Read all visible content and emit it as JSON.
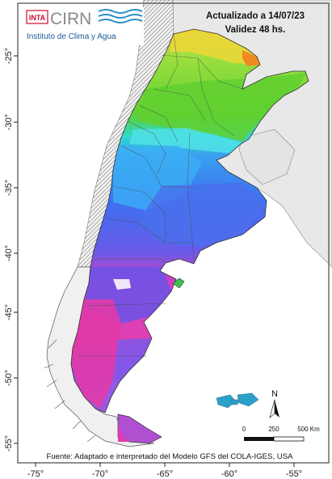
{
  "header": {
    "updated": "Actualizado a 14/07/23",
    "validity": "Validez 48 hs."
  },
  "logo": {
    "inta": "INTA",
    "cirn": "CIRN",
    "institute": "Instituto de Clima y Agua"
  },
  "axes": {
    "lon_ticks": [
      "-75°",
      "-70°",
      "-65°",
      "-60°",
      "-55°"
    ],
    "lat_ticks": [
      "-25°",
      "-30°",
      "-35°",
      "-40°",
      "-45°",
      "-50°",
      "-55°"
    ]
  },
  "north_arrow": {
    "label": "N"
  },
  "scale_bar": {
    "labels": [
      "0",
      "250",
      "500 Km"
    ]
  },
  "source": "Fuente: Adaptado e interpretado del Modelo GFS del COLA-IGES, USA",
  "colors": {
    "yellow_orange": "#f0d030",
    "green": "#70d030",
    "cyan": "#30c8f0",
    "blue": "#3c78f0",
    "violet": "#7a50e8",
    "magenta": "#e040b0",
    "neighbor_countries": "#e8e8e8",
    "chile_hatch": "#bdbdbd"
  }
}
